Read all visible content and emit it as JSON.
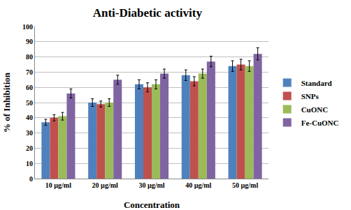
{
  "chart_data": {
    "type": "bar",
    "title": "Anti-Diabetic activity",
    "x_label": "Concentration",
    "y_label": "% of Inhibition",
    "categories": [
      "10 µg/ml",
      "20 µg/ml",
      "30 µg/ml",
      "40 µg/ml",
      "50 µg/ml"
    ],
    "series": [
      {
        "name": "Standard",
        "color": "#4F81BD",
        "values": [
          37,
          50,
          62,
          68,
          74
        ],
        "errors": [
          2,
          2.5,
          3,
          3.5,
          3.5
        ]
      },
      {
        "name": "SNPs",
        "color": "#C0504D",
        "values": [
          40,
          49,
          60,
          64,
          75
        ],
        "errors": [
          2,
          2,
          3,
          3,
          3.5
        ]
      },
      {
        "name": "CuONC",
        "color": "#9BBB59",
        "values": [
          41,
          50,
          62,
          69,
          74
        ],
        "errors": [
          2.5,
          2.5,
          3,
          3,
          3.5
        ]
      },
      {
        "name": "Fe-CuONC",
        "color": "#8064A2",
        "values": [
          56,
          65,
          69,
          77,
          82
        ],
        "errors": [
          3,
          3,
          3,
          3.5,
          4
        ]
      }
    ],
    "ylim": [
      0,
      100
    ],
    "yticks": [
      0,
      10,
      20,
      30,
      40,
      50,
      60,
      70,
      80,
      90,
      100
    ],
    "grid": true,
    "legend": "right"
  }
}
